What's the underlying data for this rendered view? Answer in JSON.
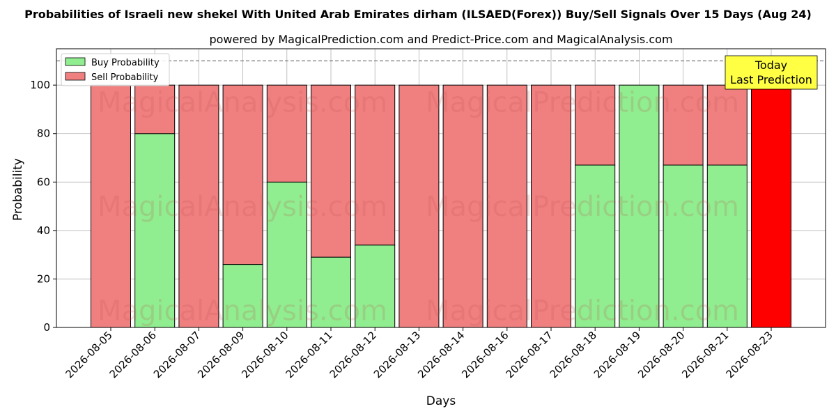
{
  "chart_data": {
    "type": "bar",
    "stacked": true,
    "title": "Probabilities of Israeli new shekel With United Arab Emirates dirham (ILSAED(Forex)) Buy/Sell Signals Over 15 Days (Aug 24)",
    "subtitle": "powered by MagicalPrediction.com and Predict-Price.com and MagicalAnalysis.com",
    "xlabel": "Days",
    "ylabel": "Probability",
    "ylim": [
      0,
      115
    ],
    "yticks": [
      0,
      20,
      40,
      60,
      80,
      100
    ],
    "reference_line": 110,
    "grid": true,
    "legend_position": "top-left",
    "categories": [
      "2026-08-05",
      "2026-08-06",
      "2026-08-07",
      "2026-08-09",
      "2026-08-10",
      "2026-08-11",
      "2026-08-12",
      "2026-08-13",
      "2026-08-14",
      "2026-08-16",
      "2026-08-17",
      "2026-08-18",
      "2026-08-19",
      "2026-08-20",
      "2026-08-21",
      "2026-08-23"
    ],
    "series": [
      {
        "name": "Buy Probability",
        "color": "#90ee90",
        "values": [
          0,
          80,
          0,
          26,
          60,
          29,
          34,
          0,
          0,
          0,
          0,
          67,
          100,
          67,
          67,
          0
        ]
      },
      {
        "name": "Sell Probability",
        "color": "#f08080",
        "values": [
          100,
          20,
          100,
          74,
          40,
          71,
          66,
          100,
          100,
          100,
          100,
          33,
          0,
          33,
          33,
          100
        ]
      }
    ],
    "today_color": "#ff0000",
    "annotation": {
      "line1": "Today",
      "line2": "Last Prediction",
      "color": "#ffff44"
    },
    "watermarks": [
      "MagicalAnalysis.com",
      "MagicalPrediction.com"
    ]
  }
}
